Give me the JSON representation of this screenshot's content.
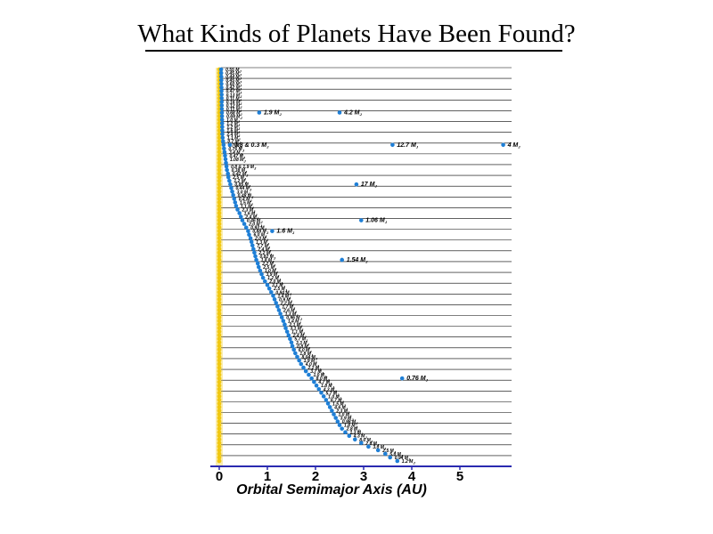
{
  "title": "What Kinds of Planets Have Been Found?",
  "chart_data": {
    "type": "scatter",
    "title": "What Kinds of Planets Have Been Found?",
    "xlabel": "Orbital Semimajor Axis  (AU)",
    "xlim": [
      0,
      6.1
    ],
    "xticks": [
      "0",
      "1",
      "2",
      "3",
      "4",
      "5"
    ],
    "grid": true,
    "colors": {
      "planet": "#1f7fd6",
      "star": "#f2c811",
      "axis": "#2a2ab0",
      "grid": "#000000"
    },
    "mass_unit": "M",
    "stars": [
      {
        "a": [
          0.039
        ],
        "m": [
          "0.55"
        ],
        "labels": []
      },
      {
        "a": [
          0.04
        ],
        "m": [
          "0.45"
        ],
        "labels": []
      },
      {
        "a": [
          0.042
        ],
        "m": [
          "0.44"
        ],
        "labels": []
      },
      {
        "a": [
          0.043
        ],
        "m": [
          "0.45"
        ],
        "labels": []
      },
      {
        "a": [
          0.045
        ],
        "m": [
          "0.60"
        ],
        "labels": []
      },
      {
        "a": [
          0.046
        ],
        "m": [
          "0.42"
        ],
        "labels": []
      },
      {
        "a": [
          0.047
        ],
        "m": [
          "0.47"
        ],
        "labels": []
      },
      {
        "a": [
          0.049
        ],
        "m": [
          "0.13"
        ],
        "labels": []
      },
      {
        "a": [
          0.05
        ],
        "m": [
          "0.11"
        ],
        "labels": []
      },
      {
        "a": [
          0.051
        ],
        "m": [
          "0.16"
        ],
        "labels": []
      },
      {
        "a": [
          0.052
        ],
        "m": [
          "0.12"
        ],
        "labels": []
      },
      {
        "a": [
          0.053
        ],
        "m": [
          "0.11"
        ],
        "labels": []
      },
      {
        "a": [
          0.055,
          0.83,
          2.5
        ],
        "m": [
          "0.68"
        ],
        "labels": [
          null,
          "1.9 M",
          "4.2 M"
        ]
      },
      {
        "a": [
          0.057
        ],
        "m": [
          "0.69"
        ],
        "labels": []
      },
      {
        "a": [
          0.058
        ],
        "m": [
          "1.0"
        ],
        "labels": []
      },
      {
        "a": [
          0.06
        ],
        "m": [
          "1.2"
        ],
        "labels": []
      },
      {
        "a": [
          0.062
        ],
        "m": [
          "1.2"
        ],
        "labels": []
      },
      {
        "a": [
          0.063
        ],
        "m": [
          "1.6"
        ],
        "labels": []
      },
      {
        "a": [
          0.065
        ],
        "m": [
          "2.4"
        ],
        "labels": []
      },
      {
        "a": [
          0.07
        ],
        "m": [
          "1.1"
        ],
        "labels": []
      },
      {
        "a": [
          0.08
        ],
        "m": [
          "0.7"
        ],
        "labels": []
      },
      {
        "a": [
          0.09,
          0.22,
          3.6,
          5.9
        ],
        "m": [
          "0.7"
        ],
        "labels": [
          null,
          "0.8 & 0.3 M",
          "12.7 M",
          "4 M"
        ]
      },
      {
        "a": [
          0.1
        ],
        "m": [
          "0.76"
        ],
        "labels": []
      },
      {
        "a": [
          0.11
        ],
        "m": [
          "3.4"
        ],
        "labels": []
      },
      {
        "a": [
          0.12
        ],
        "m": [
          "0.47"
        ],
        "labels": []
      },
      {
        "a": [
          0.13
        ],
        "m": [
          "1.08"
        ],
        "labels": []
      },
      {
        "a": [
          0.14
        ],
        "m": [
          ""
        ],
        "labels": []
      },
      {
        "a": [
          0.15
        ],
        "m": [
          "0.8 & 1.9 M"
        ],
        "labels": []
      },
      {
        "a": [
          0.16
        ],
        "m": [
          "0.38"
        ],
        "labels": []
      },
      {
        "a": [
          0.18
        ],
        "m": [
          "0.42"
        ],
        "labels": []
      },
      {
        "a": [
          0.19
        ],
        "m": [
          "2.5"
        ],
        "labels": []
      },
      {
        "a": [
          0.21
        ],
        "m": [
          "1.2"
        ],
        "labels": []
      },
      {
        "a": [
          0.23,
          2.85
        ],
        "m": [
          "0.85"
        ],
        "labels": [
          null,
          "17 M"
        ]
      },
      {
        "a": [
          0.25
        ],
        "m": [
          "0.44"
        ],
        "labels": []
      },
      {
        "a": [
          0.27
        ],
        "m": [
          "3.0"
        ],
        "labels": []
      },
      {
        "a": [
          0.29
        ],
        "m": [
          "0.48"
        ],
        "labels": []
      },
      {
        "a": [
          0.31
        ],
        "m": [
          "0.4"
        ],
        "labels": []
      },
      {
        "a": [
          0.33
        ],
        "m": [
          "1.5"
        ],
        "labels": []
      },
      {
        "a": [
          0.35
        ],
        "m": [
          "1.1"
        ],
        "labels": []
      },
      {
        "a": [
          0.38
        ],
        "m": [
          "2.3"
        ],
        "labels": []
      },
      {
        "a": [
          0.42
        ],
        "m": [
          "1.6"
        ],
        "labels": []
      },
      {
        "a": [
          0.45
        ],
        "m": [
          "2.4"
        ],
        "labels": []
      },
      {
        "a": [
          0.48,
          2.95
        ],
        "m": [
          "0.46"
        ],
        "labels": [
          null,
          "1.06 M"
        ]
      },
      {
        "a": [
          0.52
        ],
        "m": [
          "2.0"
        ],
        "labels": []
      },
      {
        "a": [
          0.56
        ],
        "m": [
          "0.93"
        ],
        "labels": []
      },
      {
        "a": [
          0.6,
          1.1
        ],
        "m": [
          "0.88"
        ],
        "labels": [
          null,
          "1.6 M"
        ]
      },
      {
        "a": [
          0.62
        ],
        "m": [
          "6.0"
        ],
        "labels": []
      },
      {
        "a": [
          0.65
        ],
        "m": [
          "2.0"
        ],
        "labels": []
      },
      {
        "a": [
          0.67
        ],
        "m": [
          "1.3"
        ],
        "labels": []
      },
      {
        "a": [
          0.69
        ],
        "m": [
          "7.7"
        ],
        "labels": []
      },
      {
        "a": [
          0.71
        ],
        "m": [
          "7.4"
        ],
        "labels": []
      },
      {
        "a": [
          0.73
        ],
        "m": [
          "2.2"
        ],
        "labels": []
      },
      {
        "a": [
          0.75
        ],
        "m": [
          "0.82"
        ],
        "labels": []
      },
      {
        "a": [
          0.77,
          2.55
        ],
        "m": [
          "1.8"
        ],
        "labels": [
          null,
          "1.54 M"
        ]
      },
      {
        "a": [
          0.8
        ],
        "m": [
          "2.2"
        ],
        "labels": []
      },
      {
        "a": [
          0.82
        ],
        "m": [
          "2.5"
        ],
        "labels": []
      },
      {
        "a": [
          0.85
        ],
        "m": [
          "1.0"
        ],
        "labels": []
      },
      {
        "a": [
          0.88
        ],
        "m": [
          "3.9"
        ],
        "labels": []
      },
      {
        "a": [
          0.91
        ],
        "m": [
          "1.2"
        ],
        "labels": []
      },
      {
        "a": [
          0.95
        ],
        "m": [
          "2.0"
        ],
        "labels": []
      },
      {
        "a": [
          1.0
        ],
        "m": [
          "3.1"
        ],
        "labels": []
      },
      {
        "a": [
          1.04
        ],
        "m": [
          "2.5"
        ],
        "labels": []
      },
      {
        "a": [
          1.08
        ],
        "m": [
          "0.84"
        ],
        "labels": []
      },
      {
        "a": [
          1.12
        ],
        "m": [
          "1.4"
        ],
        "labels": []
      },
      {
        "a": [
          1.15
        ],
        "m": [
          "0.9"
        ],
        "labels": []
      },
      {
        "a": [
          1.18
        ],
        "m": [
          "2.2"
        ],
        "labels": []
      },
      {
        "a": [
          1.21
        ],
        "m": [
          "1.7"
        ],
        "labels": []
      },
      {
        "a": [
          1.24
        ],
        "m": [
          "2.6"
        ],
        "labels": []
      },
      {
        "a": [
          1.27
        ],
        "m": [
          "1.3"
        ],
        "labels": []
      },
      {
        "a": [
          1.3
        ],
        "m": [
          "0.96"
        ],
        "labels": []
      },
      {
        "a": [
          1.33
        ],
        "m": [
          "1.4"
        ],
        "labels": []
      },
      {
        "a": [
          1.36
        ],
        "m": [
          "2.1"
        ],
        "labels": []
      },
      {
        "a": [
          1.38
        ],
        "m": [
          "3.1"
        ],
        "labels": []
      },
      {
        "a": [
          1.41
        ],
        "m": [
          "1.1"
        ],
        "labels": []
      },
      {
        "a": [
          1.44
        ],
        "m": [
          "2.4"
        ],
        "labels": []
      },
      {
        "a": [
          1.47
        ],
        "m": [
          "5.7"
        ],
        "labels": []
      },
      {
        "a": [
          1.5
        ],
        "m": [
          "3.3"
        ],
        "labels": []
      },
      {
        "a": [
          1.52
        ],
        "m": [
          "0.8"
        ],
        "labels": []
      },
      {
        "a": [
          1.55
        ],
        "m": [
          "6.0"
        ],
        "labels": []
      },
      {
        "a": [
          1.58
        ],
        "m": [
          "1.8"
        ],
        "labels": []
      },
      {
        "a": [
          1.62
        ],
        "m": [
          "8.04"
        ],
        "labels": []
      },
      {
        "a": [
          1.66
        ],
        "m": [
          "1.9"
        ],
        "labels": []
      },
      {
        "a": [
          1.7
        ],
        "m": [
          "4.0"
        ],
        "labels": []
      },
      {
        "a": [
          1.75
        ],
        "m": [
          "2.2"
        ],
        "labels": []
      },
      {
        "a": [
          1.8
        ],
        "m": [
          "3.7"
        ],
        "labels": []
      },
      {
        "a": [
          1.86
        ],
        "m": [
          "1.0"
        ],
        "labels": []
      },
      {
        "a": [
          1.92,
          3.8
        ],
        "m": [
          "8.0"
        ],
        "labels": [
          null,
          "0.76 M"
        ]
      },
      {
        "a": [
          1.97
        ],
        "m": [
          "4.7"
        ],
        "labels": []
      },
      {
        "a": [
          2.02
        ],
        "m": [
          "1.8"
        ],
        "labels": []
      },
      {
        "a": [
          2.07
        ],
        "m": [
          "4.3"
        ],
        "labels": []
      },
      {
        "a": [
          2.12
        ],
        "m": [
          "5.7"
        ],
        "labels": []
      },
      {
        "a": [
          2.17
        ],
        "m": [
          "1.0"
        ],
        "labels": []
      },
      {
        "a": [
          2.22
        ],
        "m": [
          "6.7"
        ],
        "labels": []
      },
      {
        "a": [
          2.26
        ],
        "m": [
          "1.5"
        ],
        "labels": []
      },
      {
        "a": [
          2.3
        ],
        "m": [
          "4.6"
        ],
        "labels": []
      },
      {
        "a": [
          2.34
        ],
        "m": [
          "2.3"
        ],
        "labels": []
      },
      {
        "a": [
          2.38
        ],
        "m": [
          "1.0"
        ],
        "labels": []
      },
      {
        "a": [
          2.42
        ],
        "m": [
          "3.9"
        ],
        "labels": []
      },
      {
        "a": [
          2.46
        ],
        "m": [
          "0.98"
        ],
        "labels": []
      },
      {
        "a": [
          2.5
        ],
        "m": [
          "1.8"
        ],
        "labels": []
      },
      {
        "a": [
          2.55
        ],
        "m": [
          "2.8"
        ],
        "labels": []
      },
      {
        "a": [
          2.62
        ],
        "m": [
          "1.3"
        ],
        "labels": []
      },
      {
        "a": [
          2.7
        ],
        "m": [
          "4.3"
        ],
        "labels": []
      },
      {
        "a": [
          2.82
        ],
        "m": [
          "8.0"
        ],
        "labels": []
      },
      {
        "a": [
          2.95
        ],
        "m": [
          "2.6"
        ],
        "labels": []
      },
      {
        "a": [
          3.1
        ],
        "m": [
          "3.0"
        ],
        "labels": []
      },
      {
        "a": [
          3.3
        ],
        "m": [
          "2.5"
        ],
        "labels": []
      },
      {
        "a": [
          3.45
        ],
        "m": [
          "5.0"
        ],
        "labels": []
      },
      {
        "a": [
          3.55
        ],
        "m": [
          "0.94"
        ],
        "labels": []
      },
      {
        "a": [
          3.7
        ],
        "m": [
          "1.2"
        ],
        "labels": []
      }
    ]
  }
}
